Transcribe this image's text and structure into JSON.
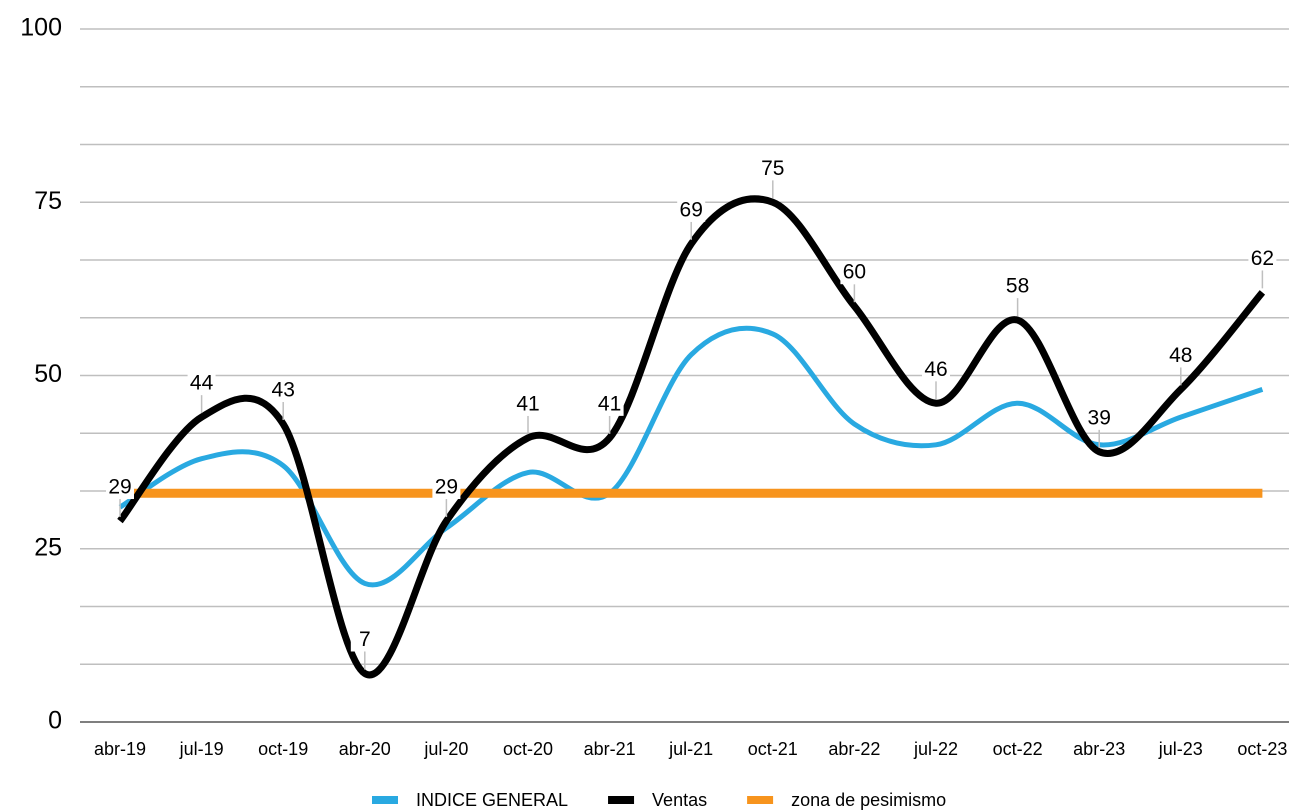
{
  "chart_data": {
    "type": "line",
    "categories": [
      "abr-19",
      "jul-19",
      "oct-19",
      "abr-20",
      "jul-20",
      "oct-20",
      "abr-21",
      "jul-21",
      "oct-21",
      "abr-22",
      "jul-22",
      "oct-22",
      "abr-23",
      "jul-23",
      "oct-23"
    ],
    "series": [
      {
        "name": "INDICE GENERAL",
        "color": "#29a9e1",
        "values": [
          31,
          38,
          37,
          20,
          28,
          36,
          33,
          53,
          56,
          43,
          40,
          46,
          40,
          44,
          48
        ]
      },
      {
        "name": "Ventas",
        "color": "#000000",
        "values": [
          29,
          44,
          43,
          7,
          29,
          41,
          41,
          69,
          75,
          60,
          46,
          58,
          39,
          48,
          62
        ],
        "data_labels": true
      },
      {
        "name": "zona de pesimismo",
        "color": "#f7941d",
        "values": [
          33,
          33,
          33,
          33,
          33,
          33,
          33,
          33,
          33,
          33,
          33,
          33,
          33,
          33,
          33
        ]
      }
    ],
    "ylim": [
      0,
      100
    ],
    "yticks": [
      0,
      25,
      50,
      75,
      100
    ],
    "grid": true,
    "legend": "bottom"
  }
}
